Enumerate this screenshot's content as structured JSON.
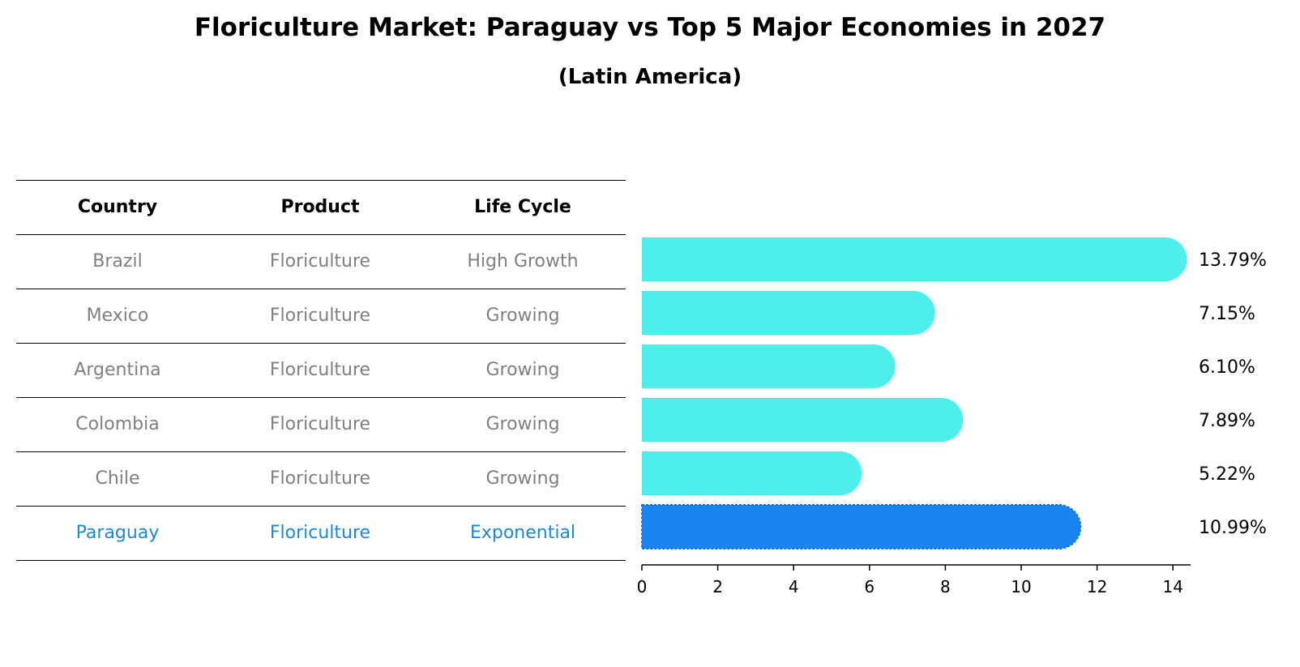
{
  "header": {
    "title": "Floriculture Market: Paraguay vs Top 5 Major Economies in 2027",
    "subtitle": "(Latin America)"
  },
  "table": {
    "columns": [
      "Country",
      "Product",
      "Life Cycle"
    ],
    "rows": [
      [
        "Brazil",
        "Floriculture",
        "High Growth"
      ],
      [
        "Mexico",
        "Floriculture",
        "Growing"
      ],
      [
        "Argentina",
        "Floriculture",
        "Growing"
      ],
      [
        "Colombia",
        "Floriculture",
        "Growing"
      ],
      [
        "Chile",
        "Floriculture",
        "Growing"
      ],
      [
        "Paraguay",
        "Floriculture",
        "Exponential"
      ]
    ],
    "highlight_row": "Paraguay"
  },
  "chart_data": {
    "type": "bar",
    "orientation": "horizontal",
    "categories": [
      "Brazil",
      "Mexico",
      "Argentina",
      "Colombia",
      "Chile",
      "Paraguay"
    ],
    "values": [
      13.79,
      7.15,
      6.1,
      7.89,
      5.22,
      10.99
    ],
    "value_labels": [
      "13.79%",
      "7.15%",
      "6.10%",
      "7.89%",
      "5.22%",
      "10.99%"
    ],
    "xlim": [
      0,
      14.5
    ],
    "xticks": [
      0,
      2,
      4,
      6,
      8,
      10,
      12,
      14
    ],
    "xlabel": "",
    "ylabel": "",
    "grid": false,
    "colors": {
      "default": "#4eeeea",
      "highlight": "#1a84f2",
      "highlight_category": "Paraguay"
    }
  }
}
